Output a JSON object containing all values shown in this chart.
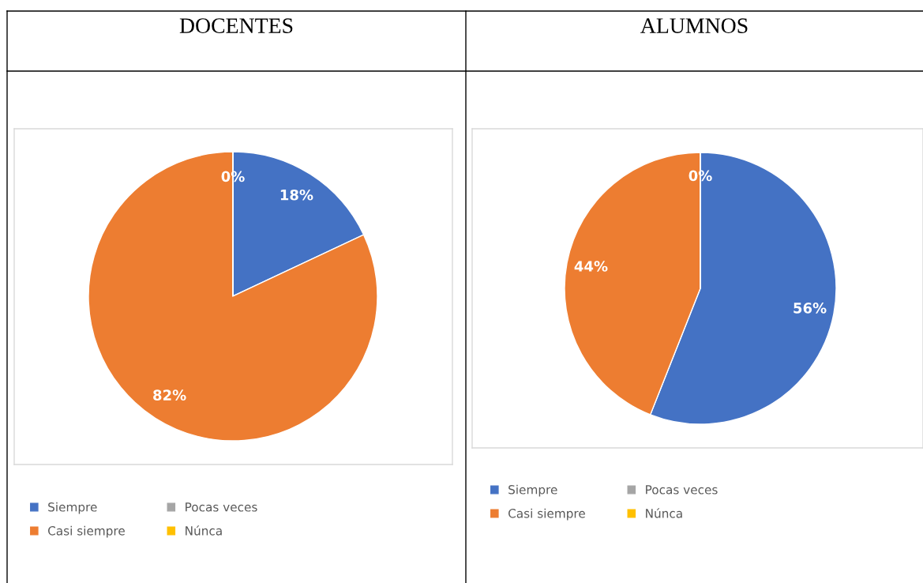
{
  "chart_data": [
    {
      "type": "pie",
      "title": "DOCENTES",
      "categories": [
        "Siempre",
        "Casi siempre",
        "Pocas veces",
        "Núnca"
      ],
      "values": [
        18,
        82,
        0,
        0
      ],
      "colors": [
        "#4472c4",
        "#ed7d31",
        "#a5a5a5",
        "#ffc000"
      ],
      "value_labels": [
        "18%",
        "82%",
        "0%",
        null
      ],
      "legend": "bottom"
    },
    {
      "type": "pie",
      "title": "ALUMNOS",
      "categories": [
        "Siempre",
        "Casi siempre",
        "Pocas veces",
        "Núnca"
      ],
      "values": [
        56,
        44,
        0,
        0
      ],
      "colors": [
        "#4472c4",
        "#ed7d31",
        "#a5a5a5",
        "#ffc000"
      ],
      "value_labels": [
        "56%",
        "44%",
        "0%",
        null
      ],
      "legend": "bottom"
    }
  ]
}
